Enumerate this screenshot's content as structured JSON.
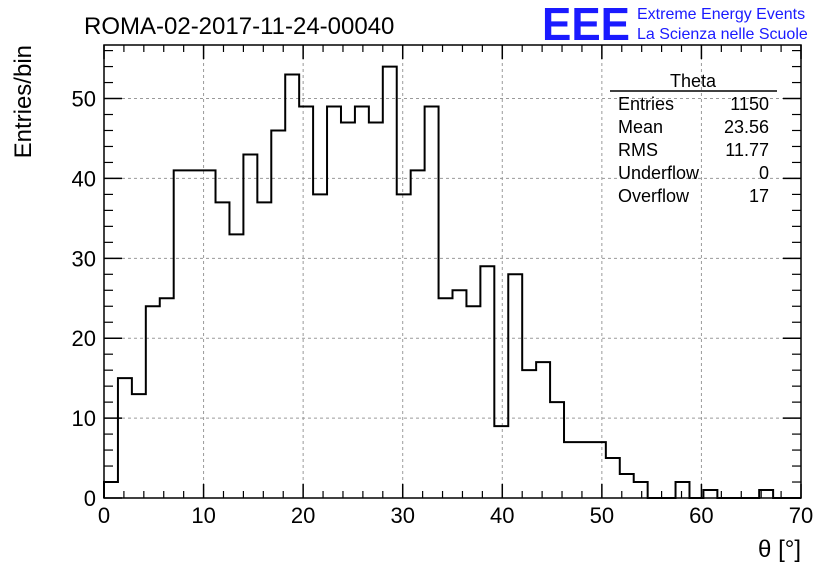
{
  "chart_data": {
    "type": "histogram",
    "title": "ROMA-02-2017-11-24-00040",
    "xlabel": "θ [°]",
    "ylabel": "Entries/bin",
    "xlim": [
      0,
      70
    ],
    "ylim": [
      0,
      56.7
    ],
    "bin_width": 1.4,
    "x_ticks": [
      "0",
      "10",
      "20",
      "30",
      "40",
      "50",
      "60",
      "70"
    ],
    "y_ticks": [
      "0",
      "10",
      "20",
      "30",
      "40",
      "50"
    ],
    "grid": true,
    "values": [
      2,
      15,
      13,
      24,
      25,
      41,
      41,
      41,
      37,
      33,
      43,
      37,
      46,
      53,
      49,
      38,
      49,
      47,
      49,
      47,
      54,
      38,
      41,
      49,
      25,
      26,
      24,
      29,
      9,
      28,
      16,
      17,
      12,
      7,
      7,
      7,
      5,
      3,
      2,
      0,
      0,
      2,
      0,
      1,
      0,
      0,
      0,
      1,
      0,
      0
    ],
    "stats_box": {
      "title": "Theta",
      "position": "top-right",
      "rows": [
        {
          "label": "Entries",
          "value": "1150"
        },
        {
          "label": "Mean",
          "value": "23.56"
        },
        {
          "label": "RMS",
          "value": "11.77"
        },
        {
          "label": "Underflow",
          "value": "0"
        },
        {
          "label": "Overflow",
          "value": "17"
        }
      ]
    }
  },
  "logo": {
    "text": "EEE",
    "line1": "Extreme Energy Events",
    "line2": "La Scienza nelle Scuole",
    "color": "#1a1aff"
  }
}
